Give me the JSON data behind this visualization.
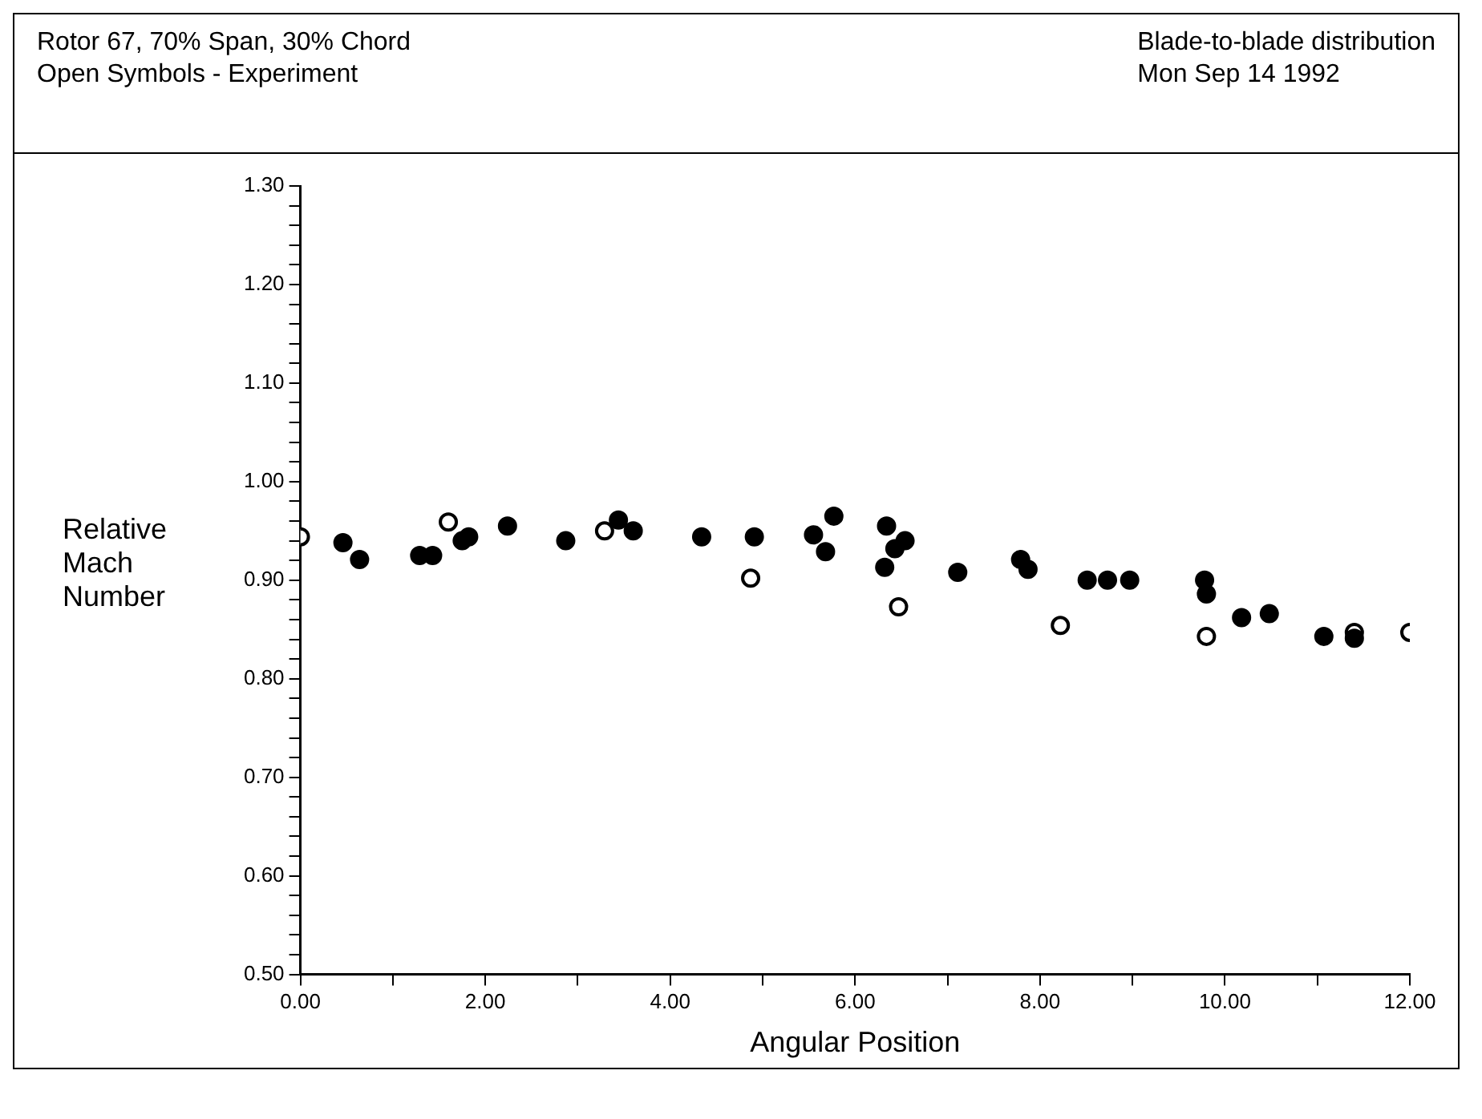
{
  "chart_data": {
    "type": "scatter",
    "title": "Rotor 67, 70% Span, 30% Chord",
    "annotations": [
      "Open Symbols - Experiment",
      "Blade-to-blade distribution",
      "Mon Sep 14 1992"
    ],
    "xlabel": "Angular Position",
    "ylabel": "Relative Mach Number",
    "series": [
      {
        "color": "#000000",
        "x": [
          12.0,
          11.4,
          9.8,
          8.22,
          6.47,
          4.87,
          3.29,
          1.6,
          0
        ],
        "values": [
          0.847,
          0.847,
          0.843,
          0.854,
          0.873,
          0.902,
          0.95,
          0.959,
          0.944
        ]
      },
      {
        "color": "#000000",
        "x": [
          11.4,
          11.07,
          10.48,
          10.18,
          9.8,
          9.78,
          8.97,
          8.73,
          8.51,
          7.87,
          7.79,
          7.11,
          6.32,
          6.43,
          6.54,
          6.34,
          5.77,
          5.68,
          5.55,
          4.91,
          4.34,
          3.6,
          3.44,
          2.87,
          2.24,
          1.82,
          1.75,
          1.43,
          1.29,
          0.64,
          0.46
        ],
        "values": [
          0.841,
          0.843,
          0.866,
          0.862,
          0.886,
          0.9,
          0.9,
          0.9,
          0.9,
          0.911,
          0.921,
          0.908,
          0.913,
          0.932,
          0.94,
          0.955,
          0.965,
          0.929,
          0.946,
          0.944,
          0.944,
          0.95,
          0.961,
          0.94,
          0.955,
          0.944,
          0.94,
          0.925,
          0.925,
          0.921,
          0.938
        ]
      }
    ],
    "marker": "circle",
    "grid": false,
    "legend": false,
    "xlim": [
      0,
      12
    ],
    "xticks": [
      {
        "value": 0,
        "label": "0.00"
      },
      {
        "value": 1,
        "label": null
      },
      {
        "value": 2,
        "label": "2.00"
      },
      {
        "value": 3,
        "label": null
      },
      {
        "value": 4,
        "label": "4.00"
      },
      {
        "value": 5,
        "label": null
      },
      {
        "value": 6,
        "label": "6.00"
      },
      {
        "value": 7,
        "label": null
      },
      {
        "value": 8,
        "label": "8.00"
      },
      {
        "value": 9,
        "label": null
      },
      {
        "value": 10,
        "label": "10.00"
      },
      {
        "value": 11,
        "label": null
      },
      {
        "value": 12,
        "label": "12.00"
      }
    ],
    "ylim": [
      0.5,
      1.3
    ],
    "yticks": [
      {
        "value": 0.5,
        "label": "0.50"
      },
      {
        "value": 0.52,
        "label": null
      },
      {
        "value": 0.54,
        "label": null
      },
      {
        "value": 0.56,
        "label": null
      },
      {
        "value": 0.58,
        "label": null
      },
      {
        "value": 0.6,
        "label": "0.60"
      },
      {
        "value": 0.62,
        "label": null
      },
      {
        "value": 0.64,
        "label": null
      },
      {
        "value": 0.66,
        "label": null
      },
      {
        "value": 0.68,
        "label": null
      },
      {
        "value": 0.7,
        "label": "0.70"
      },
      {
        "value": 0.72,
        "label": null
      },
      {
        "value": 0.74,
        "label": null
      },
      {
        "value": 0.76,
        "label": null
      },
      {
        "value": 0.78,
        "label": null
      },
      {
        "value": 0.8,
        "label": "0.80"
      },
      {
        "value": 0.82,
        "label": null
      },
      {
        "value": 0.84,
        "label": null
      },
      {
        "value": 0.86,
        "label": null
      },
      {
        "value": 0.88,
        "label": null
      },
      {
        "value": 0.9,
        "label": "0.90"
      },
      {
        "value": 0.92,
        "label": null
      },
      {
        "value": 0.94,
        "label": null
      },
      {
        "value": 0.96,
        "label": null
      },
      {
        "value": 0.98,
        "label": null
      },
      {
        "value": 1.0,
        "label": "1.00"
      },
      {
        "value": 1.02,
        "label": null
      },
      {
        "value": 1.04,
        "label": null
      },
      {
        "value": 1.06,
        "label": null
      },
      {
        "value": 1.08,
        "label": null
      },
      {
        "value": 1.1,
        "label": "1.10"
      },
      {
        "value": 1.12,
        "label": null
      },
      {
        "value": 1.14,
        "label": null
      },
      {
        "value": 1.16,
        "label": null
      },
      {
        "value": 1.18,
        "label": null
      },
      {
        "value": 1.2,
        "label": "1.20"
      },
      {
        "value": 1.22,
        "label": null
      },
      {
        "value": 1.24,
        "label": null
      },
      {
        "value": 1.26,
        "label": null
      },
      {
        "value": 1.28,
        "label": null
      },
      {
        "value": 1.3,
        "label": "1.30"
      }
    ]
  }
}
